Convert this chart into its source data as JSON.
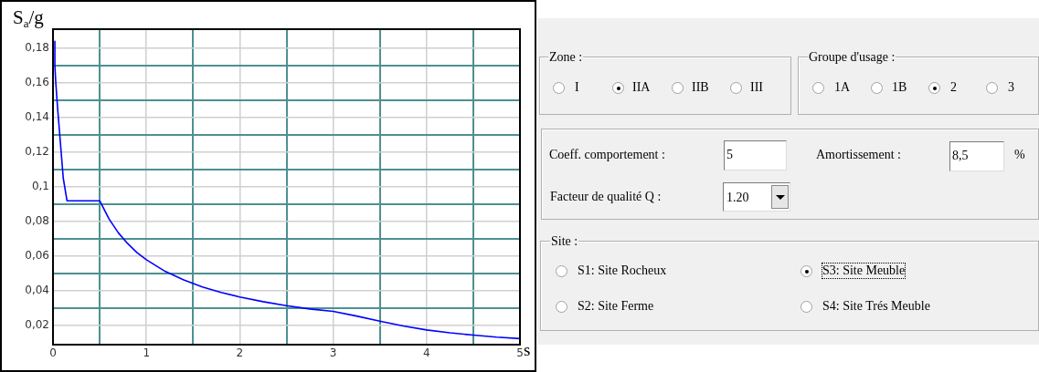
{
  "chart_data": [
    {
      "type": "line",
      "ylabel": "S$_{a}$/g",
      "xlabel": "s",
      "x": [
        0.02,
        0.02,
        0.03,
        0.05,
        0.08,
        0.11,
        0.15,
        0.5,
        0.6,
        0.7,
        0.8,
        0.9,
        1,
        1.2,
        1.4,
        1.6,
        1.8,
        2,
        2.25,
        2.5,
        2.75,
        3,
        3.25,
        3.5,
        3.75,
        4,
        4.25,
        4.5,
        4.75,
        5
      ],
      "series": [
        {
          "color": "#0000ff",
          "values": [
            0.184,
            0.17,
            0.16,
            0.145,
            0.125,
            0.105,
            0.092,
            0.092,
            0.0815,
            0.0735,
            0.0673,
            0.0621,
            0.058,
            0.0513,
            0.0463,
            0.0423,
            0.0391,
            0.0365,
            0.0338,
            0.0315,
            0.0296,
            0.0282,
            0.0255,
            0.0225,
            0.0198,
            0.0175,
            0.0158,
            0.0145,
            0.0133,
            0.0125
          ]
        }
      ],
      "xlim": [
        0,
        5
      ],
      "ylim": [
        0.009,
        0.191
      ],
      "xticks": [
        0,
        {
          "value": 0.5,
          "label": null
        },
        1,
        {
          "value": 1.5,
          "label": null
        },
        2,
        {
          "value": 2.5,
          "label": null
        },
        3,
        {
          "value": 3.5,
          "label": null
        },
        4,
        {
          "value": 4.5,
          "label": null
        },
        5
      ],
      "yticks": [
        {
          "value": 0.02,
          "label": "0,02"
        },
        {
          "value": 0.03,
          "label": null
        },
        {
          "value": 0.04,
          "label": "0,04"
        },
        {
          "value": 0.05,
          "label": null
        },
        {
          "value": 0.06,
          "label": "0,06"
        },
        {
          "value": 0.07,
          "label": null
        },
        {
          "value": 0.08,
          "label": "0,08"
        },
        {
          "value": 0.09,
          "label": null
        },
        {
          "value": 0.1,
          "label": "0,1"
        },
        {
          "value": 0.11,
          "label": null
        },
        {
          "value": 0.12,
          "label": "0,12"
        },
        {
          "value": 0.13,
          "label": null
        },
        {
          "value": 0.14,
          "label": "0,14"
        },
        {
          "value": 0.15,
          "label": null
        },
        {
          "value": 0.16,
          "label": "0,16"
        },
        {
          "value": 0.17,
          "label": null
        },
        {
          "value": 0.18,
          "label": "0,18"
        }
      ],
      "grid": true,
      "legend": false
    },
    {
      "type": "other",
      "annotations": [
        "Zone :",
        "I",
        "IIA",
        "IIB",
        "III",
        "Groupe d'usage :",
        "1A",
        "1B",
        "2",
        "3",
        "Coeff. comportement :",
        "5",
        "Amortissement :",
        "8,5",
        "%",
        "Facteur de qualité Q :",
        "1.20",
        "Site :",
        "S1: Site Rocheux",
        "S3: Site Meuble",
        "S2: Site Ferme",
        "S4: Site Trés Meuble"
      ]
    }
  ]
}
